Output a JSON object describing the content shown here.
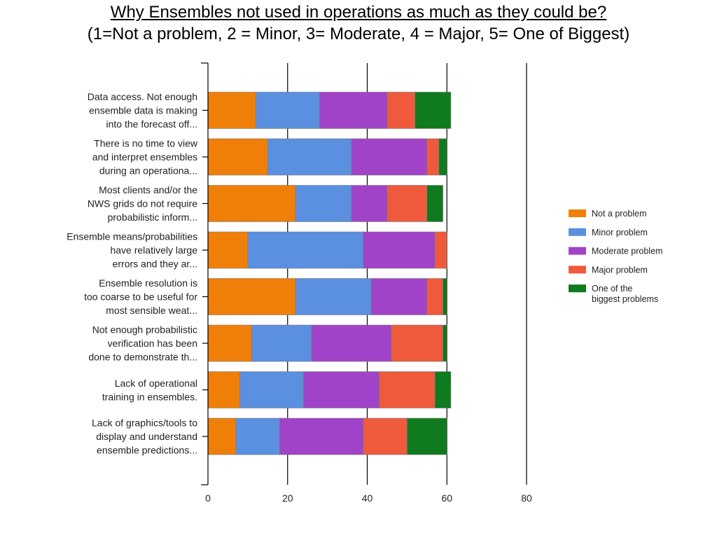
{
  "title": {
    "line1": "Why Ensembles not used in operations as much as they could be?",
    "line2": "(1=Not a problem, 2 = Minor, 3= Moderate, 4 = Major, 5= One of Biggest)"
  },
  "chart_data": {
    "type": "bar",
    "orientation": "horizontal",
    "stacked": true,
    "categories": [
      [
        "Data access. Not enough",
        "ensemble data is making",
        "into the forecast off..."
      ],
      [
        "There is no time to view",
        "and interpret ensembles",
        "during an operationa..."
      ],
      [
        "Most clients and/or the",
        "NWS grids do not require",
        "probabilistic inform..."
      ],
      [
        "Ensemble means/probabilities",
        "have relatively large",
        "errors and they ar..."
      ],
      [
        "Ensemble resolution is",
        "too coarse to be useful for",
        "most sensible weat..."
      ],
      [
        "Not enough probabilistic",
        "verification has been",
        "done to demonstrate th..."
      ],
      [
        "Lack of operational",
        "training in ensembles."
      ],
      [
        "Lack of graphics/tools to",
        "display and understand",
        "ensemble predictions..."
      ]
    ],
    "series": [
      {
        "name": "Not a problem",
        "color": "#f07f09",
        "values": [
          12,
          15,
          22,
          10,
          22,
          11,
          8,
          7
        ]
      },
      {
        "name": "Minor problem",
        "color": "#5b8fe0",
        "values": [
          16,
          21,
          14,
          29,
          19,
          15,
          16,
          11
        ]
      },
      {
        "name": "Moderate problem",
        "color": "#a043c8",
        "values": [
          17,
          19,
          9,
          18,
          14,
          20,
          19,
          21
        ]
      },
      {
        "name": "Major problem",
        "color": "#ef5a3c",
        "values": [
          7,
          3,
          10,
          3,
          4,
          13,
          14,
          11
        ]
      },
      {
        "name": "One of the\nbiggest problems",
        "color": "#0f7a1e",
        "values": [
          9,
          2,
          4,
          0,
          1,
          1,
          4,
          10
        ]
      }
    ],
    "xlim": [
      0,
      80
    ],
    "xticks": [
      0,
      20,
      40,
      60,
      80
    ],
    "grid": true,
    "legend_position": "right"
  }
}
